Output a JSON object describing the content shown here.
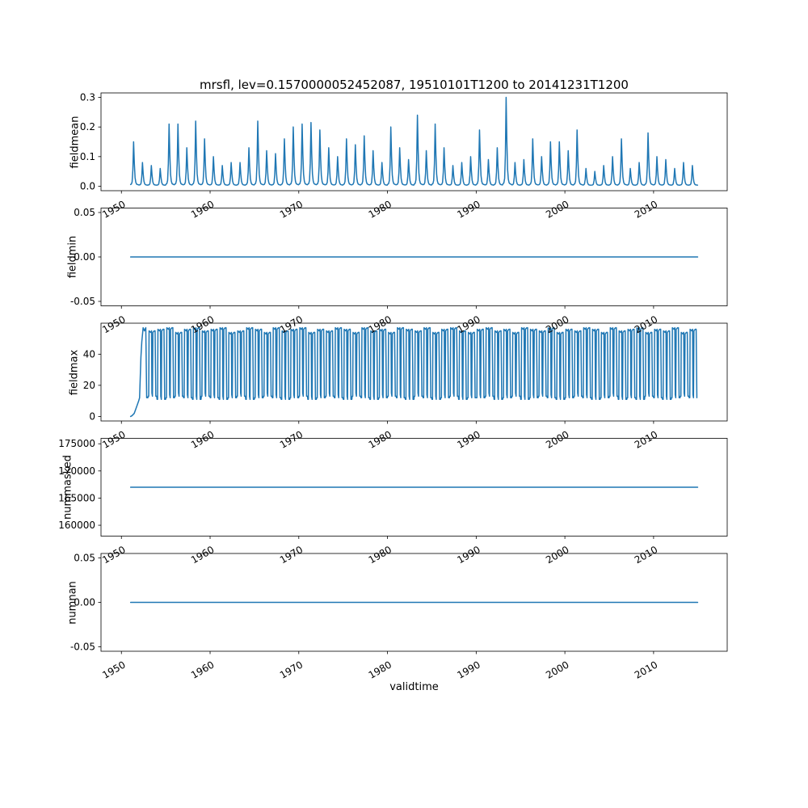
{
  "figure": {
    "title": "mrsfl, lev=0.1570000052452087, 19510101T1200 to 20141231T1200",
    "xlabel": "validtime"
  },
  "x_axis": {
    "xlabel": "validtime",
    "xlim": [
      1947.7,
      2018.3
    ],
    "xticks": [
      "1950",
      "1960",
      "1970",
      "1980",
      "1990",
      "2000",
      "2010"
    ],
    "xtick_values": [
      1950,
      1960,
      1970,
      1980,
      1990,
      2000,
      2010
    ]
  },
  "chart_data": [
    {
      "type": "line",
      "name": "fieldmean",
      "ylabel": "fieldmean",
      "color": "#1f77b4",
      "ylim": [
        -0.015,
        0.315
      ],
      "yticks": [
        "0.0",
        "0.1",
        "0.2",
        "0.3"
      ],
      "series": {
        "kind": "annual_spikes",
        "start_year": 1951,
        "baseline": 0.003,
        "peaks": [
          0.15,
          0.08,
          0.07,
          0.06,
          0.21,
          0.21,
          0.13,
          0.22,
          0.16,
          0.1,
          0.07,
          0.08,
          0.08,
          0.13,
          0.22,
          0.12,
          0.11,
          0.16,
          0.2,
          0.21,
          0.215,
          0.19,
          0.13,
          0.1,
          0.16,
          0.14,
          0.17,
          0.12,
          0.08,
          0.2,
          0.13,
          0.09,
          0.24,
          0.12,
          0.21,
          0.13,
          0.07,
          0.08,
          0.1,
          0.19,
          0.09,
          0.13,
          0.3,
          0.08,
          0.09,
          0.16,
          0.1,
          0.15,
          0.15,
          0.12,
          0.19,
          0.06,
          0.05,
          0.07,
          0.1,
          0.16,
          0.06,
          0.08,
          0.18,
          0.1,
          0.09,
          0.06,
          0.08,
          0.07
        ]
      }
    },
    {
      "type": "line",
      "name": "fieldmin",
      "ylabel": "fieldmin",
      "color": "#1f77b4",
      "ylim": [
        -0.055,
        0.055
      ],
      "yticks": [
        "-0.05",
        "0.00",
        "0.05"
      ],
      "series": {
        "kind": "constant",
        "value": 0.0,
        "x_start": 1951.04,
        "x_end": 2014.97
      }
    },
    {
      "type": "line",
      "name": "fieldmax",
      "ylabel": "fieldmax",
      "color": "#1f77b4",
      "ylim": [
        -2.9,
        59.9
      ],
      "yticks": [
        "0",
        "20",
        "40"
      ],
      "series": {
        "kind": "annual_square",
        "start_year": 1951,
        "highs": [
          54,
          57,
          55,
          56,
          57,
          54,
          56,
          57,
          55,
          56,
          57,
          54,
          55,
          57,
          56,
          54,
          57,
          55,
          56,
          57,
          54,
          56,
          55,
          57,
          56,
          54,
          57,
          55,
          56,
          54,
          57,
          56,
          55,
          57,
          54,
          56,
          57,
          55,
          54,
          56,
          57,
          55,
          56,
          54,
          57,
          56,
          55,
          57,
          54,
          56,
          55,
          57,
          56,
          54,
          57,
          55,
          56,
          57,
          54,
          56,
          55,
          57,
          54,
          56
        ],
        "lows": [
          11,
          12,
          13,
          11,
          12,
          13,
          12,
          11,
          13,
          12,
          11,
          12,
          13,
          11,
          12,
          13,
          12,
          11,
          12,
          13,
          11,
          12,
          13,
          12,
          11,
          13,
          12,
          11,
          12,
          13,
          12,
          11,
          13,
          12,
          11,
          12,
          13,
          11,
          12,
          12,
          13,
          11,
          12,
          13,
          11,
          12,
          13,
          12,
          11,
          12,
          13,
          12,
          11,
          12,
          13,
          11,
          12,
          11,
          13,
          12,
          11,
          12,
          13,
          12
        ]
      }
    },
    {
      "type": "line",
      "name": "nummasked",
      "ylabel": "nummasked",
      "color": "#1f77b4",
      "ylim": [
        158000,
        176000
      ],
      "yticks": [
        "160000",
        "165000",
        "170000",
        "175000"
      ],
      "series": {
        "kind": "constant",
        "value": 167000,
        "x_start": 1951.04,
        "x_end": 2014.97
      }
    },
    {
      "type": "line",
      "name": "numnan",
      "ylabel": "numnan",
      "color": "#1f77b4",
      "ylim": [
        -0.055,
        0.055
      ],
      "yticks": [
        "-0.05",
        "0.00",
        "0.05"
      ],
      "series": {
        "kind": "constant",
        "value": 0.0,
        "x_start": 1951.04,
        "x_end": 2014.97
      }
    }
  ]
}
